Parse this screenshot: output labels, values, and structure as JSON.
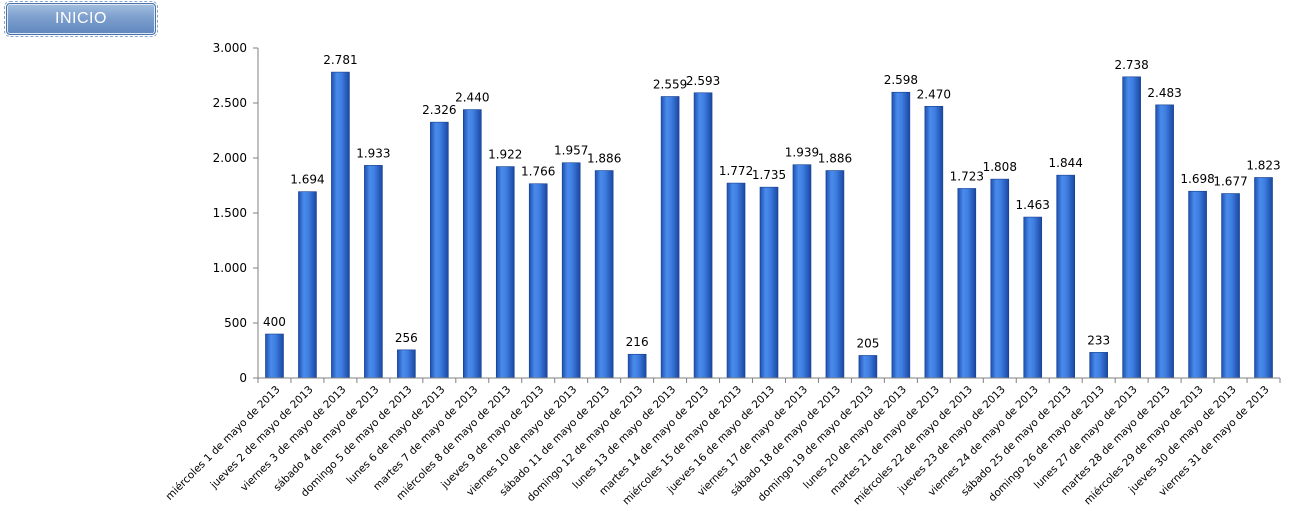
{
  "button": {
    "label": "INICIO"
  },
  "colors": {
    "bar_top": "#3c7ce0",
    "bar_bottom": "#1d4fb0",
    "bar_stroke": "#163f8e",
    "axis": "#808080"
  },
  "chart_data": {
    "type": "bar",
    "title": "",
    "xlabel": "",
    "ylabel": "",
    "ylim": [
      0,
      3000
    ],
    "yticks": [
      0,
      500,
      1000,
      1500,
      2000,
      2500,
      3000
    ],
    "ytick_labels": [
      "0",
      "500",
      "1.000",
      "1.500",
      "2.000",
      "2.500",
      "3.000"
    ],
    "grid": false,
    "categories": [
      "miércoles 1 de mayo de 2013",
      "jueves 2 de mayo de 2013",
      "viernes 3 de mayo de 2013",
      "sábado 4 de mayo de 2013",
      "domingo 5 de mayo de 2013",
      "lunes 6 de mayo de 2013",
      "martes 7 de mayo de 2013",
      "miércoles 8 de mayo de 2013",
      "jueves 9 de mayo de 2013",
      "viernes 10 de mayo de 2013",
      "sábado 11 de mayo de 2013",
      "domingo 12 de mayo de 2013",
      "lunes 13 de mayo de 2013",
      "martes 14 de mayo de 2013",
      "miércoles 15 de mayo de 2013",
      "jueves 16 de mayo de 2013",
      "viernes 17 de mayo de 2013",
      "sábado 18 de mayo de 2013",
      "domingo 19 de mayo de 2013",
      "lunes 20 de mayo de 2013",
      "martes 21 de mayo de 2013",
      "miércoles 22 de mayo de 2013",
      "jueves 23 de mayo de 2013",
      "viernes 24 de mayo de 2013",
      "sábado 25 de mayo de 2013",
      "domingo 26 de mayo de 2013",
      "lunes 27 de mayo de 2013",
      "martes 28 de mayo de 2013",
      "miércoles 29 de mayo de 2013",
      "jueves 30 de mayo de 2013",
      "viernes 31 de mayo de 2013"
    ],
    "values": [
      400,
      1694,
      2781,
      1933,
      256,
      2326,
      2440,
      1922,
      1766,
      1957,
      1886,
      216,
      2559,
      2593,
      1772,
      1735,
      1939,
      1886,
      205,
      2598,
      2470,
      1723,
      1808,
      1463,
      1844,
      233,
      2738,
      2483,
      1698,
      1677,
      1823
    ],
    "value_labels": [
      "400",
      "1.694",
      "2.781",
      "1.933",
      "256",
      "2.326",
      "2.440",
      "1.922",
      "1.766",
      "1.957",
      "1.886",
      "216",
      "2.559",
      "2.593",
      "1.772",
      "1.735",
      "1.939",
      "1.886",
      "205",
      "2.598",
      "2.470",
      "1.723",
      "1.808",
      "1.463",
      "1.844",
      "233",
      "2.738",
      "2.483",
      "1.698",
      "1.677",
      "1.823"
    ]
  }
}
